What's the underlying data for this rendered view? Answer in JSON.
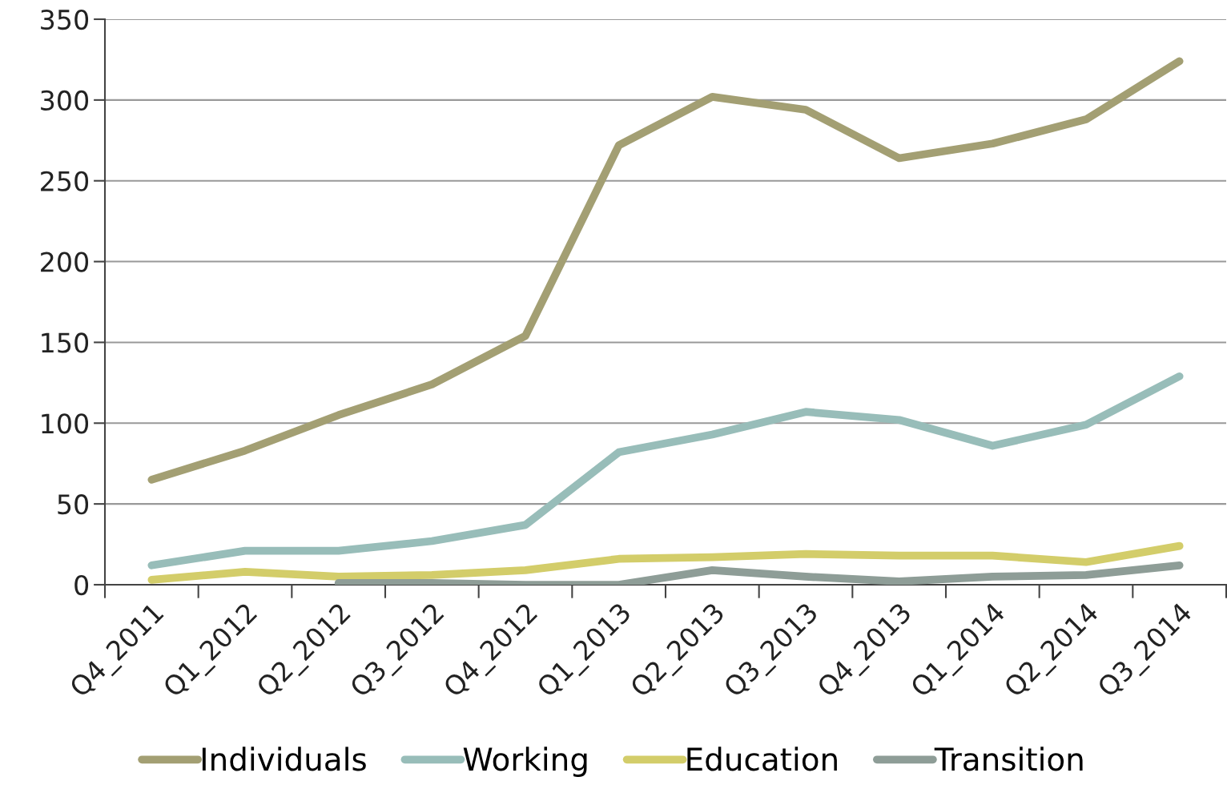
{
  "chart_data": {
    "type": "line",
    "categories": [
      "Q4_2011",
      "Q1_2012",
      "Q2_2012",
      "Q3_2012",
      "Q4_2012",
      "Q1_2013",
      "Q2_2013",
      "Q3_2013",
      "Q4_2013",
      "Q1_2014",
      "Q2_2014",
      "Q3_2014"
    ],
    "series": [
      {
        "name": "Individuals",
        "color": "#a39f73",
        "values": [
          65,
          83,
          105,
          124,
          154,
          272,
          302,
          294,
          264,
          273,
          288,
          324
        ]
      },
      {
        "name": "Working",
        "color": "#98bdb9",
        "values": [
          12,
          21,
          21,
          27,
          37,
          82,
          93,
          107,
          102,
          86,
          99,
          129
        ]
      },
      {
        "name": "Education",
        "color": "#d3cd6a",
        "values": [
          3,
          8,
          5,
          6,
          9,
          16,
          17,
          19,
          18,
          18,
          14,
          24
        ]
      },
      {
        "name": "Transition",
        "color": "#8e9d97",
        "values": [
          null,
          null,
          1,
          1,
          0,
          0,
          9,
          5,
          2,
          5,
          6,
          12
        ]
      }
    ],
    "ylim": [
      0,
      350
    ],
    "yticks": [
      0,
      50,
      100,
      150,
      200,
      250,
      300,
      350
    ],
    "grid": "y",
    "legend": "bottom",
    "marker": "none",
    "line_style": "solid"
  }
}
